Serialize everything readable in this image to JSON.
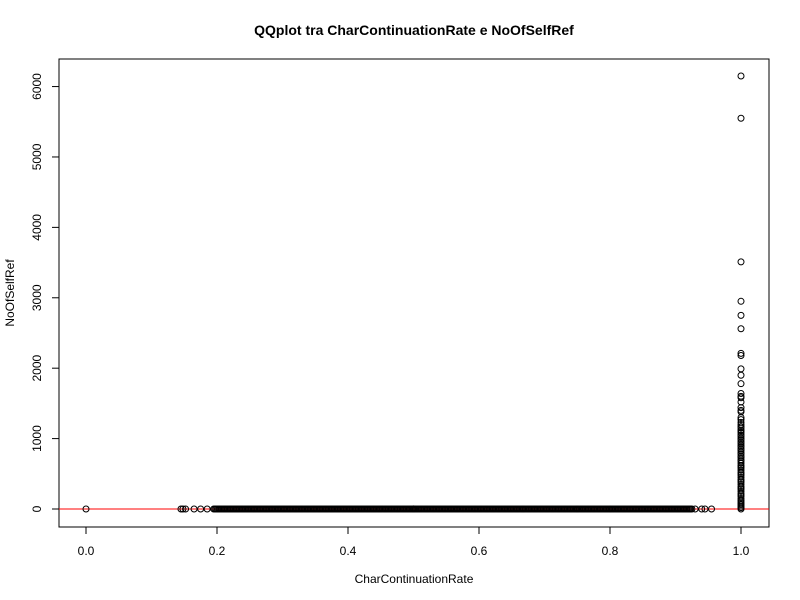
{
  "chart_data": {
    "type": "scatter",
    "title": "QQplot tra CharContinuationRate e NoOfSelfRef",
    "xlabel": "CharContinuationRate",
    "ylabel": "NoOfSelfRef",
    "xlim": [
      0,
      1
    ],
    "ylim": [
      0,
      6150
    ],
    "x_ticks": [
      "0.0",
      "0.2",
      "0.4",
      "0.6",
      "0.8",
      "1.0"
    ],
    "y_ticks": [
      "0",
      "1000",
      "2000",
      "3000",
      "4000",
      "5000",
      "6000"
    ],
    "grid": false,
    "legend": "none",
    "point_color": "#000000",
    "reference_line": {
      "orientation": "horizontal",
      "y": 0,
      "color": "#ff0000"
    },
    "series": [
      {
        "points_isolated": [
          [
            0.0,
            0
          ],
          [
            0.145,
            0
          ],
          [
            0.148,
            0
          ],
          [
            0.152,
            0
          ],
          [
            0.165,
            0
          ],
          [
            0.175,
            0
          ],
          [
            0.185,
            0
          ],
          [
            0.5,
            0
          ],
          [
            0.5,
            2
          ],
          [
            0.667,
            0
          ],
          [
            0.75,
            0
          ],
          [
            0.8,
            0
          ],
          [
            0.93,
            0
          ],
          [
            0.94,
            0
          ],
          [
            0.945,
            0
          ],
          [
            0.955,
            0
          ]
        ],
        "dense_band_x": [
          0.195,
          0.925
        ],
        "dense_band_y": 0,
        "points_at_x1": [
          6150,
          5550,
          3510,
          2950,
          2750,
          2560,
          2210,
          2180,
          1990,
          1900,
          1780,
          1640,
          1600,
          1580,
          1520,
          1440,
          1400,
          1380,
          1300,
          1270,
          1230,
          1200,
          1170,
          1150,
          1120,
          1100,
          1080,
          1050,
          1030,
          1000,
          980,
          950,
          930,
          900,
          880,
          850,
          830,
          800,
          780,
          750,
          730,
          700,
          680,
          650,
          620,
          600,
          580,
          550,
          520,
          500,
          480,
          450,
          420,
          400,
          380,
          350,
          320,
          300,
          280,
          250,
          220,
          200,
          180,
          150,
          120,
          100,
          80,
          60,
          40,
          20,
          0
        ]
      }
    ]
  }
}
